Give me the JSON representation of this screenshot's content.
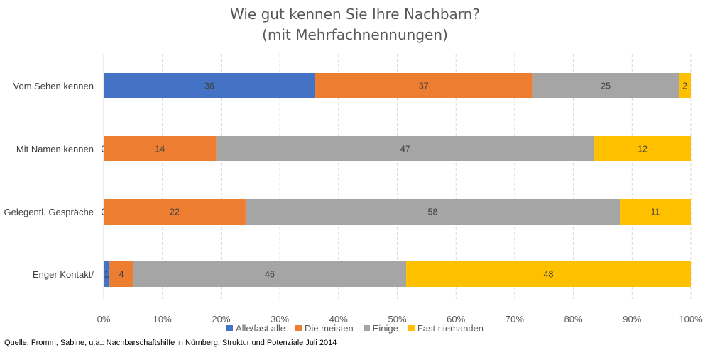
{
  "chart_data": {
    "type": "bar",
    "orientation": "horizontal",
    "stacked": "percent",
    "title": "Wie gut kennen Sie Ihre Nachbarn?",
    "subtitle": "(mit Mehrfachnennungen)",
    "categories": [
      "Vom Sehen kennen",
      "Mit Namen kennen",
      "Gelegentl. Gespräche",
      "Enger Kontakt/"
    ],
    "series": [
      {
        "name": "Alle/fast alle",
        "color": "#4472C4",
        "values": [
          36,
          0,
          0,
          1
        ],
        "labels": [
          "36",
          "0",
          "0",
          "1"
        ]
      },
      {
        "name": "Die meisten",
        "color": "#ED7D31",
        "values": [
          37,
          14,
          22,
          4
        ],
        "labels": [
          "37",
          "14",
          "22",
          "4"
        ]
      },
      {
        "name": "Einige",
        "color": "#A5A5A5",
        "values": [
          25,
          47,
          58,
          46
        ],
        "labels": [
          "25",
          "47",
          "58",
          "46"
        ]
      },
      {
        "name": "Fast niemanden",
        "color": "#FFC000",
        "values": [
          2,
          12,
          11,
          48
        ],
        "labels": [
          "2",
          "12",
          "11",
          "48"
        ]
      }
    ],
    "x_ticks": [
      "0%",
      "10%",
      "20%",
      "30%",
      "40%",
      "50%",
      "60%",
      "70%",
      "80%",
      "90%",
      "100%"
    ],
    "xlim": [
      0,
      100
    ],
    "grid": "vertical-dashed",
    "legend_position": "bottom"
  },
  "source": "Quelle: Fromm, Sabine, u.a.: Nachbarschaftshilfe in Nürnberg: Struktur und Potenziale Juli 2014"
}
